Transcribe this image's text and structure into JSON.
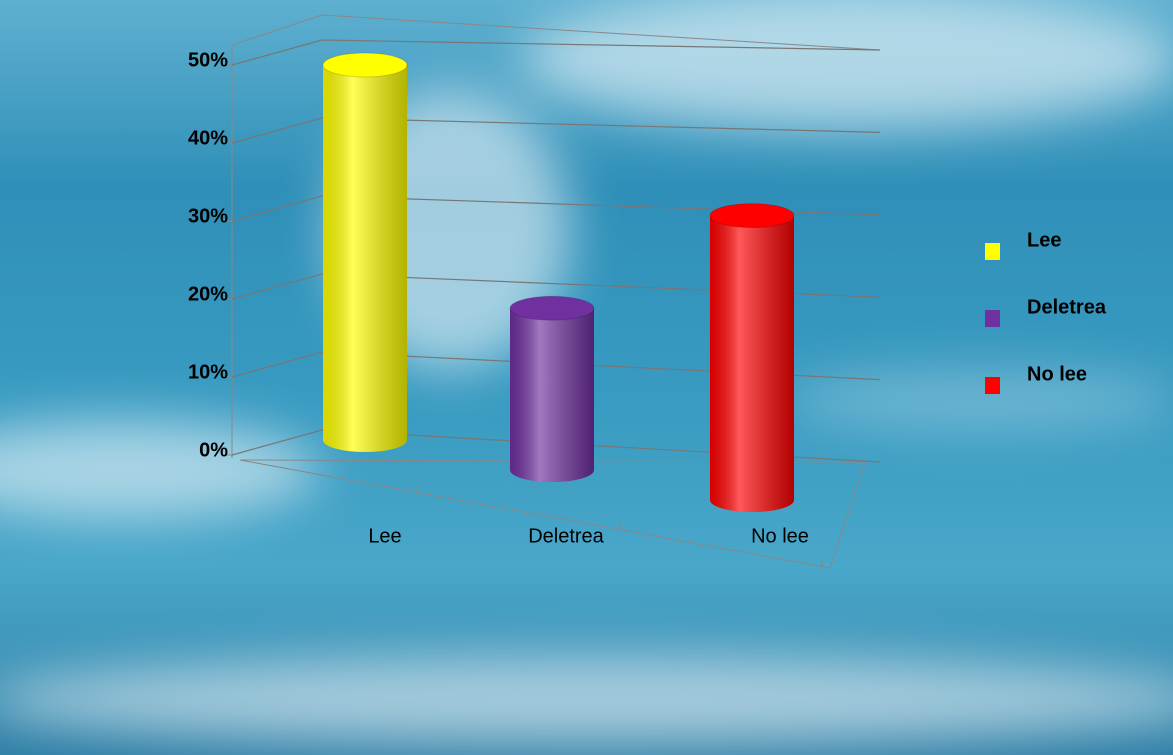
{
  "chart_data": {
    "type": "bar3d",
    "categories": [
      "Lee",
      "Deletrea",
      "No lee"
    ],
    "values": [
      50,
      21,
      36
    ],
    "colors": [
      "#ffff00",
      "#7030a0",
      "#ff0000"
    ],
    "ylim": [
      0,
      50
    ],
    "yticks": [
      {
        "value": 0,
        "label": "0%"
      },
      {
        "value": 10,
        "label": "10%"
      },
      {
        "value": 20,
        "label": "20%"
      },
      {
        "value": 30,
        "label": "30%"
      },
      {
        "value": 40,
        "label": "40%"
      },
      {
        "value": 50,
        "label": "50%"
      }
    ],
    "grid": true,
    "legend": "right"
  }
}
